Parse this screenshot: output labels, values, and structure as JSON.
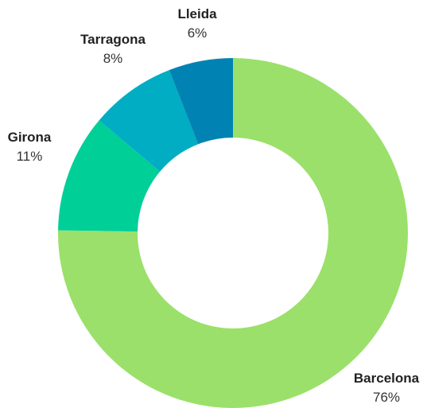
{
  "chart_data": {
    "type": "pie",
    "style": "donut",
    "slices": [
      {
        "label": "Barcelona",
        "value": 76,
        "value_label": "76%",
        "color": "#9be06a"
      },
      {
        "label": "Girona",
        "value": 11,
        "value_label": "11%",
        "color": "#00cf98"
      },
      {
        "label": "Tarragona",
        "value": 8,
        "value_label": "8%",
        "color": "#00adc3"
      },
      {
        "label": "Lleida",
        "value": 6,
        "value_label": "6%",
        "color": "#0083b3"
      }
    ]
  }
}
